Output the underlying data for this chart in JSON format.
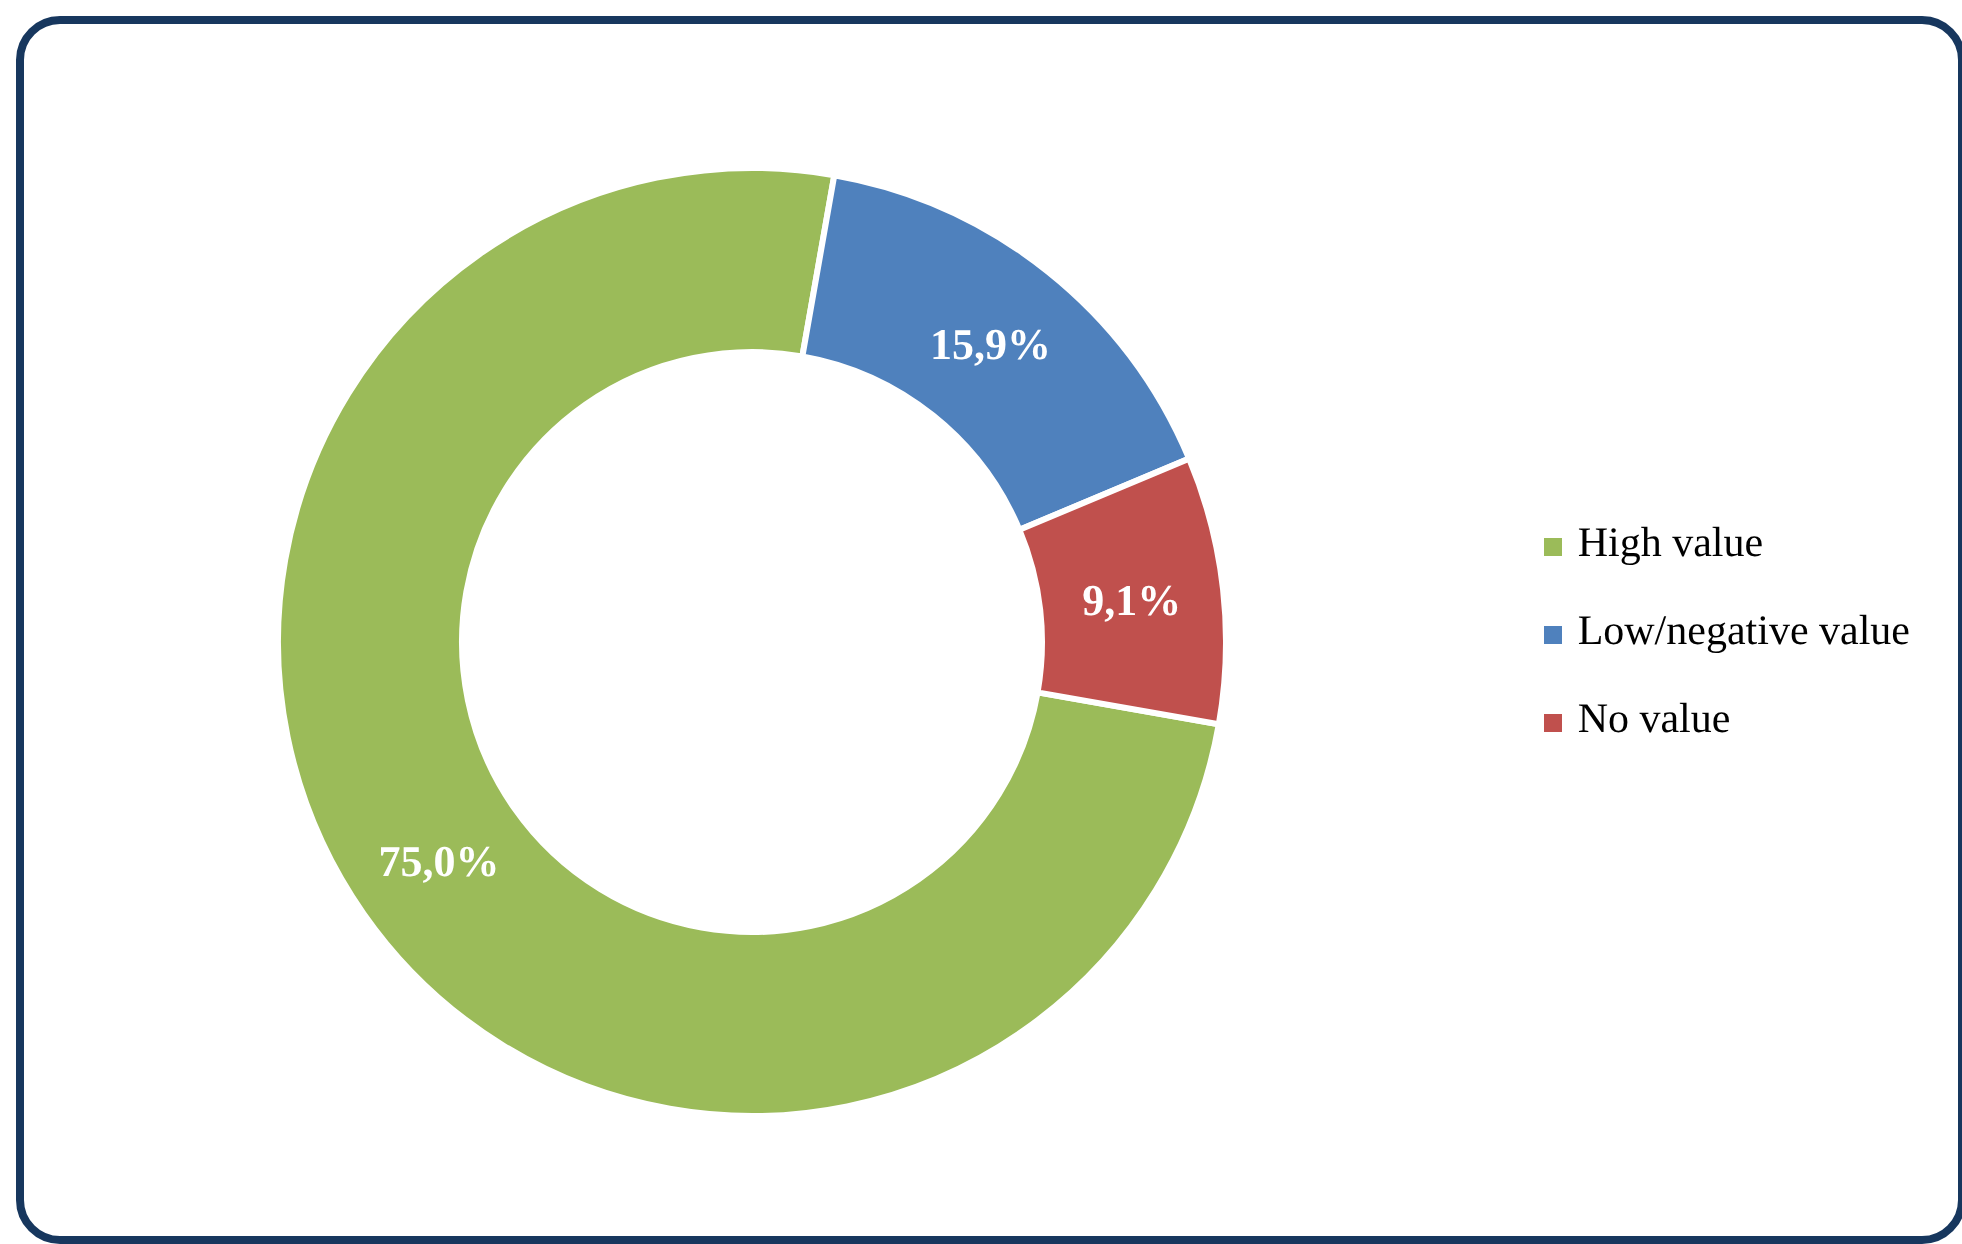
{
  "chart_data": {
    "type": "donut",
    "categories": [
      "High value",
      "Low/negative value",
      "No value"
    ],
    "values": [
      75.0,
      15.9,
      9.1
    ],
    "colors": [
      "#9bbb59",
      "#4f81bd",
      "#c0504d"
    ],
    "value_labels": [
      "75,0%",
      "15,9%",
      "9,1%"
    ],
    "legend": "right"
  }
}
